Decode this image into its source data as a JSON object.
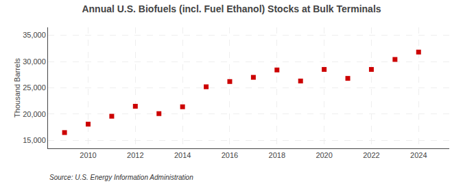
{
  "chart_data": {
    "type": "scatter",
    "title": "Annual U.S. Biofuels (incl. Fuel Ethanol) Stocks at Bulk Terminals",
    "ylabel": "Thousand Barrels",
    "source": "Source: U.S. Energy Information Administration",
    "x": [
      2009,
      2010,
      2011,
      2012,
      2013,
      2014,
      2015,
      2016,
      2017,
      2018,
      2019,
      2020,
      2021,
      2022,
      2023,
      2024
    ],
    "values": [
      16500,
      18100,
      19600,
      21500,
      20100,
      21400,
      25200,
      26200,
      27000,
      28400,
      26300,
      28500,
      26800,
      28500,
      30400,
      31800
    ],
    "color": "#cc0000",
    "marker": "square",
    "xlim": [
      2008.3,
      2025.3
    ],
    "xticks": [
      2010,
      2012,
      2014,
      2016,
      2018,
      2020,
      2022,
      2024
    ],
    "ylim": [
      13500,
      36500
    ],
    "yticks": [
      {
        "value": 15000,
        "label": "15,000"
      },
      {
        "value": 20000,
        "label": "20,000"
      },
      {
        "value": 25000,
        "label": "25,000"
      },
      {
        "value": 30000,
        "label": "30,000"
      },
      {
        "value": 35000,
        "label": "35,000"
      }
    ],
    "grid": true
  }
}
